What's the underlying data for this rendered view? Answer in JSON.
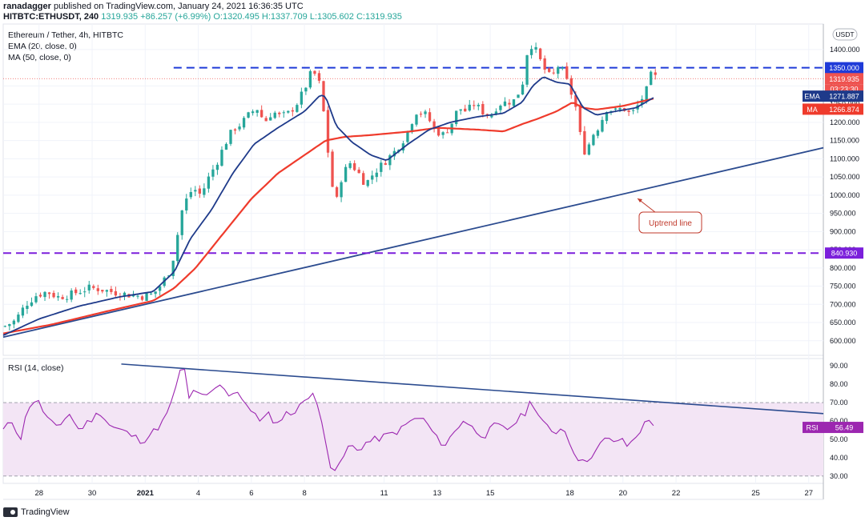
{
  "header": {
    "publisher": "ranadagger",
    "published_text": "published on TradingView.com, January 24, 2021 16:36:35 UTC",
    "symbol": "HITBTC:ETHUSDT, 240",
    "last": "1319.935",
    "change": "+86.257 (+6.99%)",
    "ohlc": {
      "o": "O:1320.495",
      "h": "H:1337.709",
      "l": "L:1305.602",
      "c": "C:1319.935"
    }
  },
  "legend": {
    "title": "Ethereum / Tether, 4h, HITBTC",
    "ema": "EMA (20, close, 0)",
    "ma": "MA (50, close, 0)",
    "rsi": "RSI (14, close)"
  },
  "currency": "USDT",
  "annotation": "Uptrend line",
  "footer": {
    "brand": "TradingView"
  },
  "colors": {
    "up": "#26a69a",
    "down": "#ef5350",
    "ema": "#1e3a8a",
    "ma": "#ef3b2c",
    "rsi": "#9c27b0",
    "resistance": "#1f3bd8",
    "support": "#7b1fdb",
    "trendline": "#2b4b8f",
    "rsi_band": "#f3e5f5"
  },
  "chart_data": [
    {
      "type": "candlestick",
      "title": "Ethereum / Tether, 4h, HITBTC",
      "ylim": [
        560,
        1470
      ],
      "y_ticks": [
        "1400.000",
        "1300.000",
        "1250.000",
        "1200.000",
        "1150.000",
        "1100.000",
        "1050.000",
        "1000.000",
        "950.000",
        "900.000",
        "850.000",
        "800.000",
        "750.000",
        "700.000",
        "650.000",
        "600.000"
      ],
      "y_tick_values": [
        1400,
        1300,
        1250,
        1200,
        1150,
        1100,
        1050,
        1000,
        950,
        900,
        850,
        800,
        750,
        700,
        650,
        600
      ],
      "x_ticks": [
        "28",
        "30",
        "2021",
        "4",
        "6",
        "8",
        "11",
        "13",
        "15",
        "18",
        "20",
        "22",
        "25",
        "27"
      ],
      "x_tick_pos": [
        0.5,
        2.5,
        4.5,
        6.5,
        8.5,
        10.5,
        13.5,
        15.5,
        17.5,
        20.5,
        22.5,
        24.5,
        27.5,
        29.5
      ],
      "xlim": [
        -0.85,
        30.05
      ],
      "price_labels": {
        "resistance": {
          "value": 1350,
          "label": "1350.000"
        },
        "last": {
          "value": 1319.935,
          "label": "1319.935"
        },
        "countdown": "03:23:30",
        "ema": {
          "value": 1271.887,
          "label": "1271.887",
          "name": "EMA"
        },
        "ma": {
          "value": 1266.874,
          "label": "1266.874",
          "name": "MA"
        },
        "support": {
          "value": 840.93,
          "label": "840.930"
        }
      },
      "horizontal_levels": [
        1350,
        840.93
      ],
      "uptrend_line": {
        "from": [
          -0.85,
          610
        ],
        "to": [
          30.05,
          1130
        ]
      },
      "close_anchors": [
        [
          -0.8,
          640
        ],
        [
          -0.4,
          655
        ],
        [
          0.0,
          700
        ],
        [
          0.4,
          725
        ],
        [
          0.8,
          735
        ],
        [
          1.2,
          720
        ],
        [
          1.6,
          725
        ],
        [
          2.0,
          735
        ],
        [
          2.4,
          745
        ],
        [
          2.8,
          742
        ],
        [
          3.2,
          735
        ],
        [
          3.6,
          730
        ],
        [
          4.0,
          725
        ],
        [
          4.4,
          722
        ],
        [
          4.8,
          728
        ],
        [
          5.1,
          755
        ],
        [
          5.4,
          790
        ],
        [
          5.65,
          850
        ],
        [
          5.8,
          940
        ],
        [
          6.0,
          980
        ],
        [
          6.3,
          1020
        ],
        [
          6.6,
          1000
        ],
        [
          6.9,
          1050
        ],
        [
          7.2,
          1090
        ],
        [
          7.5,
          1140
        ],
        [
          7.8,
          1180
        ],
        [
          8.1,
          1195
        ],
        [
          8.4,
          1220
        ],
        [
          8.7,
          1240
        ],
        [
          9.0,
          1200
        ],
        [
          9.3,
          1230
        ],
        [
          9.6,
          1215
        ],
        [
          9.9,
          1225
        ],
        [
          10.2,
          1250
        ],
        [
          10.5,
          1290
        ],
        [
          10.8,
          1345
        ],
        [
          11.1,
          1300
        ],
        [
          11.3,
          1180
        ],
        [
          11.5,
          1040
        ],
        [
          11.7,
          980
        ],
        [
          11.9,
          1050
        ],
        [
          12.2,
          1090
        ],
        [
          12.5,
          1065
        ],
        [
          12.8,
          1030
        ],
        [
          13.1,
          1060
        ],
        [
          13.5,
          1090
        ],
        [
          13.9,
          1120
        ],
        [
          14.3,
          1160
        ],
        [
          14.7,
          1230
        ],
        [
          15.1,
          1220
        ],
        [
          15.4,
          1180
        ],
        [
          15.7,
          1165
        ],
        [
          16.0,
          1190
        ],
        [
          16.3,
          1240
        ],
        [
          16.6,
          1230
        ],
        [
          16.9,
          1250
        ],
        [
          17.2,
          1230
        ],
        [
          17.5,
          1215
        ],
        [
          17.8,
          1250
        ],
        [
          18.1,
          1255
        ],
        [
          18.4,
          1260
        ],
        [
          18.7,
          1300
        ],
        [
          18.95,
          1420
        ],
        [
          19.2,
          1400
        ],
        [
          19.5,
          1350
        ],
        [
          19.8,
          1320
        ],
        [
          20.1,
          1360
        ],
        [
          20.4,
          1310
        ],
        [
          20.7,
          1250
        ],
        [
          20.9,
          1160
        ],
        [
          21.1,
          1110
        ],
        [
          21.3,
          1160
        ],
        [
          21.6,
          1190
        ],
        [
          21.9,
          1240
        ],
        [
          22.2,
          1230
        ],
        [
          22.5,
          1240
        ],
        [
          22.8,
          1220
        ],
        [
          23.1,
          1250
        ],
        [
          23.4,
          1290
        ],
        [
          23.6,
          1340
        ],
        [
          23.75,
          1320
        ]
      ],
      "ema_anchors": [
        [
          -0.85,
          615
        ],
        [
          0.5,
          660
        ],
        [
          2,
          695
        ],
        [
          3.5,
          720
        ],
        [
          4.8,
          735
        ],
        [
          5.6,
          790
        ],
        [
          6.2,
          880
        ],
        [
          7,
          960
        ],
        [
          7.8,
          1060
        ],
        [
          8.6,
          1140
        ],
        [
          9.5,
          1185
        ],
        [
          10.5,
          1230
        ],
        [
          11.1,
          1275
        ],
        [
          11.3,
          1270
        ],
        [
          11.7,
          1190
        ],
        [
          12.3,
          1145
        ],
        [
          13,
          1110
        ],
        [
          13.6,
          1095
        ],
        [
          14.4,
          1140
        ],
        [
          15.2,
          1180
        ],
        [
          16,
          1200
        ],
        [
          17,
          1215
        ],
        [
          18,
          1225
        ],
        [
          18.7,
          1255
        ],
        [
          19.1,
          1300
        ],
        [
          19.5,
          1325
        ],
        [
          20,
          1310
        ],
        [
          20.5,
          1305
        ],
        [
          21,
          1240
        ],
        [
          21.5,
          1220
        ],
        [
          22.2,
          1230
        ],
        [
          23,
          1240
        ],
        [
          23.75,
          1271.9
        ]
      ],
      "ma_anchors": [
        [
          -0.85,
          620
        ],
        [
          1,
          645
        ],
        [
          3,
          680
        ],
        [
          4.8,
          710
        ],
        [
          5.6,
          745
        ],
        [
          6.4,
          800
        ],
        [
          7.5,
          900
        ],
        [
          8.5,
          990
        ],
        [
          9.5,
          1060
        ],
        [
          10.5,
          1110
        ],
        [
          11.3,
          1150
        ],
        [
          12,
          1160
        ],
        [
          13,
          1165
        ],
        [
          14.5,
          1175
        ],
        [
          15.5,
          1185
        ],
        [
          17,
          1180
        ],
        [
          18,
          1175
        ],
        [
          18.7,
          1195
        ],
        [
          19.3,
          1210
        ],
        [
          20,
          1230
        ],
        [
          20.6,
          1255
        ],
        [
          21,
          1240
        ],
        [
          21.5,
          1235
        ],
        [
          22.5,
          1245
        ],
        [
          23.75,
          1266.9
        ]
      ]
    },
    {
      "type": "line",
      "title": "RSI (14, close)",
      "ylim": [
        26,
        94
      ],
      "y_ticks": [
        "90.00",
        "80.00",
        "70.00",
        "60.00",
        "50.00",
        "40.00",
        "30.00"
      ],
      "y_tick_values": [
        90,
        80,
        70,
        60,
        50,
        40,
        30
      ],
      "band": [
        30,
        70
      ],
      "last": {
        "value": 56.49,
        "label": "56.49",
        "name": "RSI"
      },
      "downtrend_line": {
        "from": [
          3.6,
          91
        ],
        "to": [
          30.05,
          64
        ]
      },
      "rsi_anchors": [
        [
          -0.85,
          55
        ],
        [
          -0.5,
          60
        ],
        [
          -0.2,
          50
        ],
        [
          0.1,
          68
        ],
        [
          0.4,
          72
        ],
        [
          0.8,
          62
        ],
        [
          1.2,
          55
        ],
        [
          1.6,
          65
        ],
        [
          2,
          55
        ],
        [
          2.4,
          60
        ],
        [
          2.8,
          65
        ],
        [
          3.2,
          57
        ],
        [
          3.6,
          55
        ],
        [
          4,
          52
        ],
        [
          4.4,
          49
        ],
        [
          4.8,
          54
        ],
        [
          5.2,
          60
        ],
        [
          5.5,
          70
        ],
        [
          5.75,
          85
        ],
        [
          5.95,
          90
        ],
        [
          6.15,
          72
        ],
        [
          6.4,
          78
        ],
        [
          6.7,
          72
        ],
        [
          7,
          75
        ],
        [
          7.3,
          80
        ],
        [
          7.6,
          74
        ],
        [
          7.9,
          77
        ],
        [
          8.2,
          72
        ],
        [
          8.5,
          65
        ],
        [
          8.8,
          60
        ],
        [
          9.1,
          66
        ],
        [
          9.4,
          55
        ],
        [
          9.7,
          64
        ],
        [
          10.2,
          65
        ],
        [
          10.5,
          72
        ],
        [
          10.8,
          76
        ],
        [
          11.1,
          62
        ],
        [
          11.3,
          50
        ],
        [
          11.5,
          35
        ],
        [
          11.75,
          33
        ],
        [
          11.95,
          40
        ],
        [
          12.2,
          47
        ],
        [
          12.5,
          44
        ],
        [
          12.8,
          48
        ],
        [
          13.2,
          50
        ],
        [
          13.6,
          52
        ],
        [
          14.1,
          55
        ],
        [
          14.5,
          60
        ],
        [
          14.9,
          62
        ],
        [
          15.2,
          57
        ],
        [
          15.5,
          50
        ],
        [
          15.8,
          47
        ],
        [
          16.1,
          53
        ],
        [
          16.5,
          61
        ],
        [
          16.9,
          55
        ],
        [
          17.3,
          52
        ],
        [
          17.7,
          58
        ],
        [
          18.1,
          55
        ],
        [
          18.5,
          60
        ],
        [
          18.85,
          65
        ],
        [
          19.05,
          72
        ],
        [
          19.3,
          64
        ],
        [
          19.6,
          57
        ],
        [
          19.9,
          52
        ],
        [
          20.2,
          58
        ],
        [
          20.5,
          48
        ],
        [
          20.8,
          40
        ],
        [
          21.0,
          37
        ],
        [
          21.2,
          40
        ],
        [
          21.5,
          44
        ],
        [
          21.8,
          50
        ],
        [
          22.1,
          49
        ],
        [
          22.4,
          50
        ],
        [
          22.7,
          46
        ],
        [
          23.0,
          52
        ],
        [
          23.3,
          58
        ],
        [
          23.55,
          61
        ],
        [
          23.75,
          56.5
        ]
      ]
    }
  ]
}
